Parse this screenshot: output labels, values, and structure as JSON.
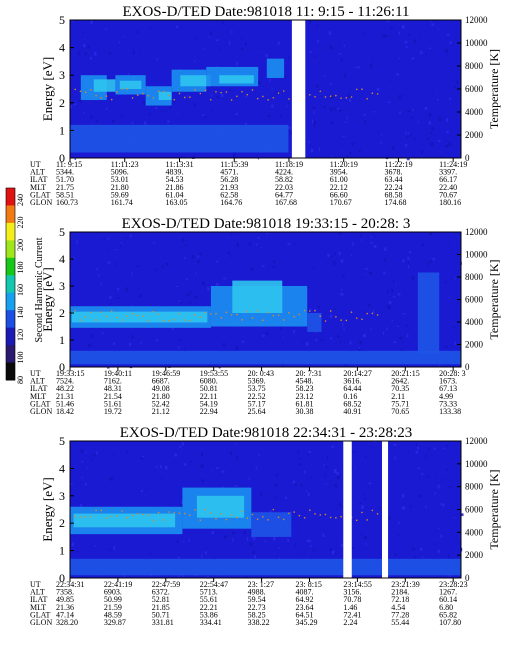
{
  "colors": {
    "background_navy": "#1a1ad2",
    "blob_cyan": "#2fc4ee",
    "blob_teal": "#1c8ff0",
    "blob_mid": "#1f55e6",
    "trace_orange": "#d88a2a",
    "gap_white": "#ffffff",
    "frame": "#000000"
  },
  "colorbar": {
    "label": "Second Harmonic Current",
    "ticks": [
      "240",
      "220",
      "200",
      "180",
      "160",
      "140",
      "120",
      "100",
      "80"
    ],
    "colors": [
      "#e11212",
      "#f27b14",
      "#f4ef1a",
      "#9fe61a",
      "#18c818",
      "#14c8b0",
      "#18a0f0",
      "#1c4fe2",
      "#1c1ab4",
      "#2a1a6e",
      "#0a0a0a"
    ]
  },
  "chart_data": [
    {
      "type": "heatmap",
      "title": "EXOS-D/TED   Date:981018   11: 9:15 - 11:26:11",
      "ylabel": "Energy [eV]",
      "y2label": "Temperature [K]",
      "ylim": [
        0,
        5
      ],
      "y2lim": [
        0,
        12000
      ],
      "yticks": [
        "0",
        "1",
        "2",
        "3",
        "4",
        "5"
      ],
      "y2ticks": [
        "0",
        "2000",
        "4000",
        "6000",
        "8000",
        "10000",
        "12000"
      ],
      "data_gaps": [
        [
          "11:17:48",
          "11:18:19"
        ]
      ],
      "ephemeris_labels": [
        "UT",
        "ALT",
        "ILAT",
        "MLT",
        "GLAT",
        "GLON"
      ],
      "ephemeris": [
        [
          "11: 9:15",
          "5344.",
          "51.70",
          "21.75",
          "58.51",
          "160.73"
        ],
        [
          "11:11:23",
          "5096.",
          "53.01",
          "21.80",
          "59.69",
          "161.74"
        ],
        [
          "11:13:31",
          "4839.",
          "54.53",
          "21.86",
          "61.04",
          "163.05"
        ],
        [
          "11:15:39",
          "4571.",
          "56.28",
          "21.93",
          "62.58",
          "164.76"
        ],
        [
          "11:18:19",
          "4224.",
          "58.82",
          "22.03",
          "64.77",
          "167.68"
        ],
        [
          "11:20:19",
          "3954.",
          "61.00",
          "22.12",
          "66.60",
          "170.67"
        ],
        [
          "11:22:19",
          "3678.",
          "63.44",
          "22.24",
          "68.58",
          "174.68"
        ],
        [
          "11:24:19",
          "3397.",
          "66.17",
          "22.40",
          "70.67",
          "180.16"
        ]
      ]
    },
    {
      "type": "heatmap",
      "title": "EXOS-D/TED   Date:981018   19:33:15 - 20:28: 3",
      "ylabel": "Energy [eV]",
      "y2label": "Temperature [K]",
      "ylim": [
        0,
        5
      ],
      "y2lim": [
        0,
        12000
      ],
      "yticks": [
        "0",
        "1",
        "2",
        "3",
        "4",
        "5"
      ],
      "y2ticks": [
        "0",
        "2000",
        "4000",
        "6000",
        "8000",
        "10000",
        "12000"
      ],
      "data_gaps": [],
      "ephemeris_labels": [
        "UT",
        "ALT",
        "ILAT",
        "MLT",
        "GLAT",
        "GLON"
      ],
      "ephemeris": [
        [
          "19:33:15",
          "7524.",
          "48.22",
          "21.31",
          "51.46",
          "18.42"
        ],
        [
          "19:40:11",
          "7162.",
          "48.31",
          "21.54",
          "51.61",
          "19.72"
        ],
        [
          "19:46:59",
          "6687.",
          "49.08",
          "21.80",
          "52.42",
          "21.12"
        ],
        [
          "19:53:55",
          "6080.",
          "50.81",
          "22.11",
          "54.19",
          "22.94"
        ],
        [
          "20: 0:43",
          "5369.",
          "53.75",
          "22.52",
          "57.17",
          "25.64"
        ],
        [
          "20: 7:31",
          "4548.",
          "58.23",
          "23.12",
          "61.81",
          "30.38"
        ],
        [
          "20:14:27",
          "3616.",
          "64.44",
          "0.16",
          "68.52",
          "40.91"
        ],
        [
          "20:21:15",
          "2642.",
          "70.35",
          "2.11",
          "75.71",
          "70.65"
        ],
        [
          "20:28: 3",
          "1673.",
          "67.13",
          "4.99",
          "73.33",
          "133.38"
        ]
      ]
    },
    {
      "type": "heatmap",
      "title": "EXOS-D/TED   Date:981018   22:34:31 - 23:28:23",
      "ylabel": "Energy [eV]",
      "y2label": "Temperature [K]",
      "ylim": [
        0,
        5
      ],
      "y2lim": [
        0,
        12000
      ],
      "yticks": [
        "0",
        "1",
        "2",
        "3",
        "4",
        "5"
      ],
      "y2ticks": [
        "0",
        "2000",
        "4000",
        "6000",
        "8000",
        "10000",
        "12000"
      ],
      "data_gaps": [
        [
          "23:12:10",
          "23:13:20"
        ],
        [
          "23:17:30",
          "23:18:20"
        ]
      ],
      "ephemeris_labels": [
        "UT",
        "ALT",
        "ILAT",
        "MLT",
        "GLAT",
        "GLON"
      ],
      "ephemeris": [
        [
          "22:34:31",
          "7358.",
          "49.85",
          "21.36",
          "47.14",
          "328.20"
        ],
        [
          "22:41:19",
          "6903.",
          "50.99",
          "21.59",
          "48.59",
          "329.87"
        ],
        [
          "22:47:59",
          "6372.",
          "52.81",
          "21.85",
          "50.71",
          "331.81"
        ],
        [
          "22:54:47",
          "5713.",
          "55.61",
          "22.21",
          "53.86",
          "334.41"
        ],
        [
          "23: 1:27",
          "4988.",
          "59.54",
          "22.73",
          "58.25",
          "338.22"
        ],
        [
          "23: 8:15",
          "4087.",
          "64.92",
          "23.64",
          "64.51",
          "345.29"
        ],
        [
          "23:14:55",
          "3156.",
          "70.78",
          "1.46",
          "72.41",
          "2.24"
        ],
        [
          "23:21:39",
          "2184.",
          "72.18",
          "4.54",
          "77.28",
          "55.44"
        ],
        [
          "23:28:23",
          "1267.",
          "60.14",
          "6.80",
          "65.82",
          "107.80"
        ]
      ]
    }
  ]
}
